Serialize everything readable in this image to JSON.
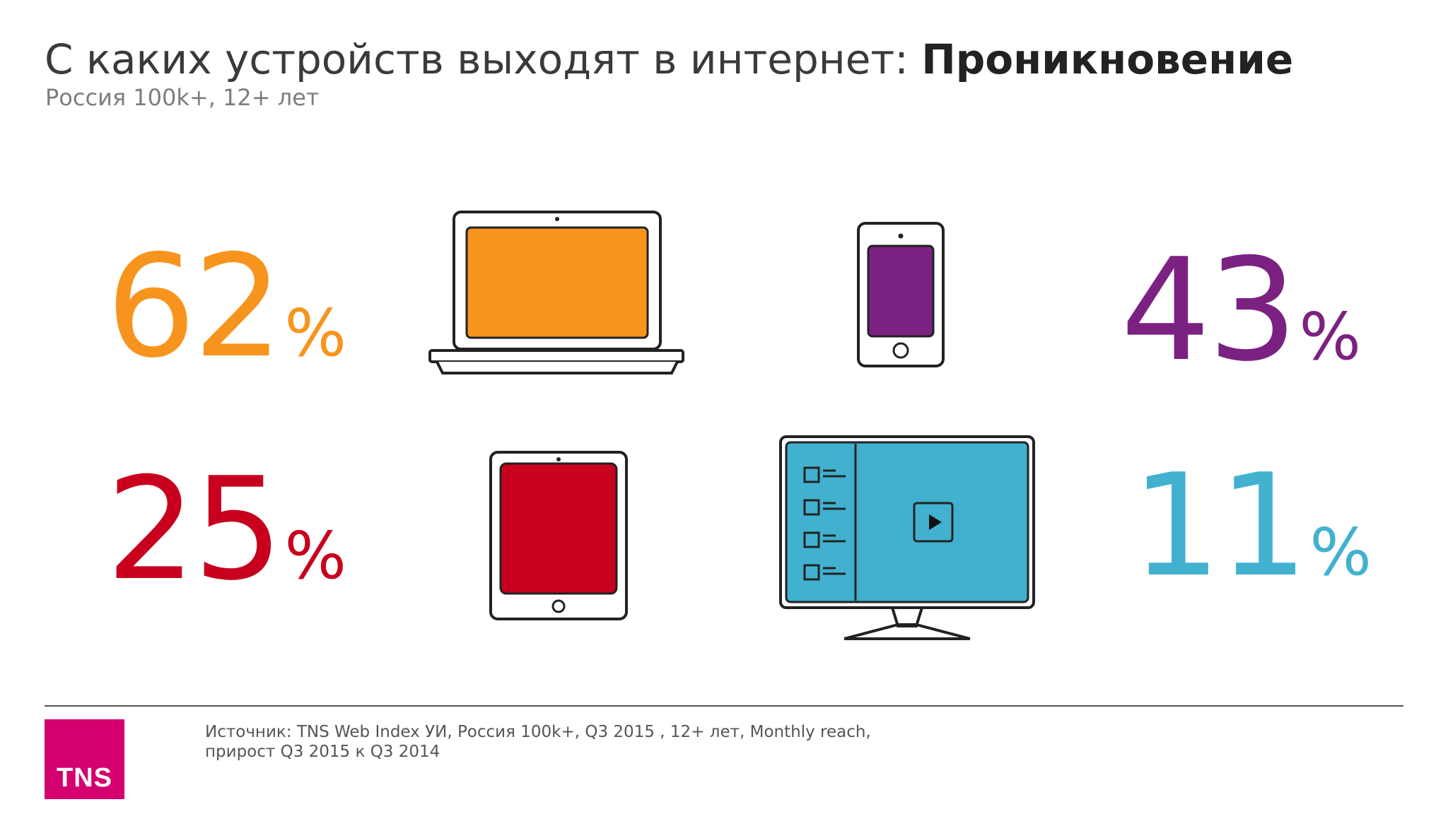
{
  "slide": {
    "title_regular": "С каких устройств выходят в интернет: ",
    "title_bold": "Проникновение",
    "subtitle": "Россия 100k+, 12+ лет"
  },
  "stats": [
    {
      "device": "laptop",
      "value": "62",
      "unit": "%",
      "color": "#f7941e"
    },
    {
      "device": "smartphone",
      "value": "43",
      "unit": "%",
      "color": "#7b2181"
    },
    {
      "device": "tablet",
      "value": "25",
      "unit": "%",
      "color": "#c8001e"
    },
    {
      "device": "smart-tv",
      "value": "11",
      "unit": "%",
      "color": "#41b1cf"
    }
  ],
  "icons": [
    "laptop-icon",
    "smartphone-icon",
    "tablet-icon",
    "tv-icon",
    "play-icon"
  ],
  "footer": {
    "logo": "TNS",
    "logo_color": "#d4006f",
    "source_line1": "Источник: TNS Web Index УИ, Россия 100k+, Q3 2015 , 12+ лет, Monthly reach,",
    "source_line2": "прирост Q3 2015 к Q3 2014"
  }
}
